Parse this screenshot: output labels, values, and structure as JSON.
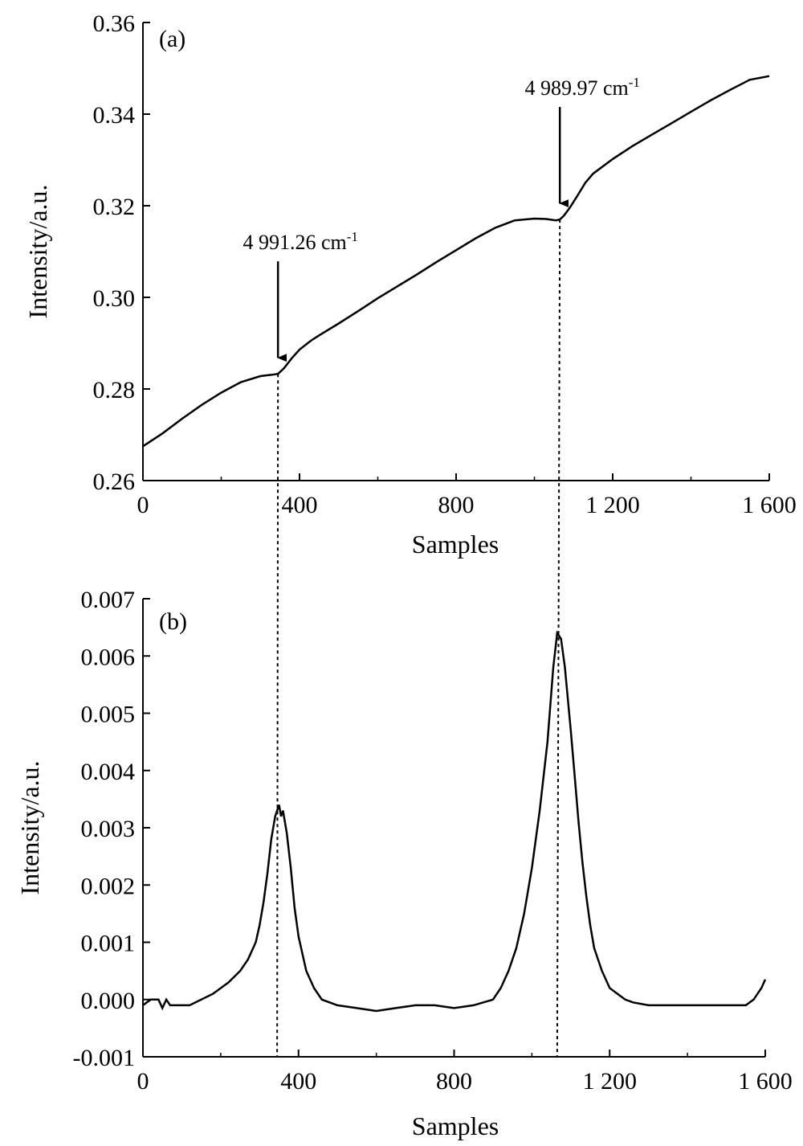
{
  "chart_data": [
    {
      "type": "line",
      "panel_label": "(a)",
      "xlabel": "Samples",
      "ylabel": "Intensity/a.u.",
      "xlim": [
        0,
        1600
      ],
      "ylim": [
        0.26,
        0.36
      ],
      "x_ticks": [
        0,
        400,
        800,
        1200,
        1600
      ],
      "x_tick_labels": [
        "0",
        "400",
        "800",
        "1 200",
        "1 600"
      ],
      "y_ticks": [
        0.26,
        0.28,
        0.3,
        0.32,
        0.34,
        0.36
      ],
      "y_tick_labels": [
        "0.26",
        "0.28",
        "0.30",
        "0.32",
        "0.34",
        "0.36"
      ],
      "series": [
        {
          "x": [
            0,
            50,
            100,
            150,
            200,
            250,
            300,
            330,
            345,
            360,
            380,
            400,
            430,
            450,
            500,
            550,
            600,
            650,
            700,
            750,
            800,
            850,
            900,
            950,
            1000,
            1030,
            1055,
            1065,
            1075,
            1090,
            1110,
            1130,
            1150,
            1200,
            1250,
            1300,
            1350,
            1400,
            1450,
            1500,
            1550,
            1600
          ],
          "y": [
            0.2675,
            0.2703,
            0.2735,
            0.2765,
            0.2792,
            0.2815,
            0.2828,
            0.2831,
            0.2833,
            0.2845,
            0.2867,
            0.2886,
            0.2906,
            0.2917,
            0.2943,
            0.297,
            0.2998,
            0.3024,
            0.305,
            0.3077,
            0.3103,
            0.3129,
            0.3152,
            0.3168,
            0.3172,
            0.3171,
            0.3168,
            0.317,
            0.3178,
            0.3195,
            0.3222,
            0.325,
            0.327,
            0.3302,
            0.333,
            0.3355,
            0.338,
            0.3405,
            0.343,
            0.3453,
            0.3475,
            0.3483
          ]
        }
      ],
      "annotations": [
        {
          "text": "4 991.26 cm",
          "sup": "-1",
          "x": 345,
          "y": 0.2833
        },
        {
          "text": "4 989.97 cm",
          "sup": "-1",
          "x": 1065,
          "y": 0.317
        }
      ],
      "grid": false
    },
    {
      "type": "line",
      "panel_label": "(b)",
      "xlabel": "Samples",
      "ylabel": "Intensity/a.u.",
      "xlim": [
        0,
        1600
      ],
      "ylim": [
        -0.001,
        0.007
      ],
      "x_ticks": [
        0,
        400,
        800,
        1200,
        1600
      ],
      "x_tick_labels": [
        "0",
        "400",
        "800",
        "1 200",
        "1 600"
      ],
      "y_ticks": [
        -0.001,
        0,
        0.001,
        0.002,
        0.003,
        0.004,
        0.005,
        0.006,
        0.007
      ],
      "y_tick_labels": [
        "-0.001",
        "0.000",
        "0.001",
        "0.002",
        "0.003",
        "0.004",
        "0.005",
        "0.006",
        "0.007"
      ],
      "series": [
        {
          "x": [
            0,
            20,
            40,
            50,
            60,
            70,
            80,
            100,
            120,
            150,
            180,
            200,
            220,
            250,
            270,
            290,
            300,
            310,
            320,
            330,
            340,
            345,
            350,
            355,
            360,
            370,
            380,
            390,
            400,
            420,
            440,
            460,
            500,
            550,
            600,
            650,
            700,
            750,
            800,
            850,
            900,
            920,
            940,
            960,
            980,
            1000,
            1020,
            1040,
            1055,
            1065,
            1075,
            1085,
            1100,
            1110,
            1120,
            1130,
            1140,
            1150,
            1160,
            1180,
            1200,
            1220,
            1240,
            1260,
            1300,
            1350,
            1400,
            1450,
            1500,
            1550,
            1570,
            1590,
            1600
          ],
          "y": [
            -0.0001,
            0,
            0,
            -0.00015,
            0,
            -0.0001,
            -0.0001,
            -0.0001,
            -0.0001,
            0,
            0.0001,
            0.0002,
            0.0003,
            0.0005,
            0.0007,
            0.001,
            0.0013,
            0.0017,
            0.0022,
            0.0028,
            0.0032,
            0.0033,
            0.0034,
            0.0032,
            0.0033,
            0.0029,
            0.0023,
            0.0016,
            0.0011,
            0.0005,
            0.0002,
            0,
            -0.0001,
            -0.00015,
            -0.0002,
            -0.00015,
            -0.0001,
            -0.0001,
            -0.00015,
            -0.0001,
            0,
            0.0002,
            0.0005,
            0.0009,
            0.0015,
            0.0023,
            0.0033,
            0.0045,
            0.0058,
            0.0064,
            0.0063,
            0.0058,
            0.0047,
            0.0039,
            0.0031,
            0.0024,
            0.0018,
            0.0013,
            0.0009,
            0.0005,
            0.0002,
            0.0001,
            0,
            -5e-05,
            -0.0001,
            -0.0001,
            -0.0001,
            -0.0001,
            -0.0001,
            -0.0001,
            0,
            0.0002,
            0.00035
          ]
        }
      ],
      "annotations": [
        {
          "x": 345
        },
        {
          "x": 1065
        }
      ],
      "grid": false
    }
  ]
}
